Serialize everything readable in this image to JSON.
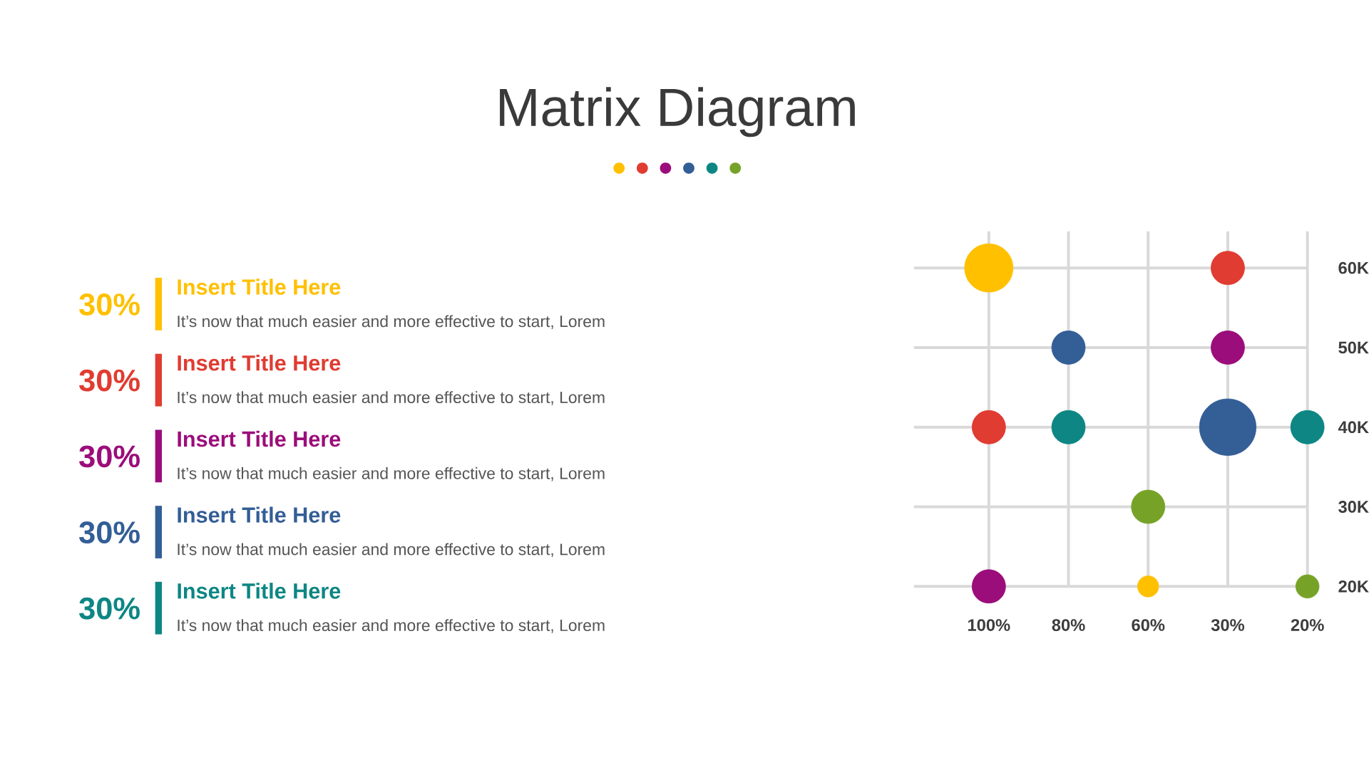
{
  "chart_data": [
    {
      "type": "other",
      "categories": [
        "Insert Title Here",
        "Insert Title Here",
        "Insert Title Here",
        "Insert Title Here",
        "Insert Title Here"
      ],
      "value_labels": [
        "30%",
        "30%",
        "30%",
        "30%",
        "30%"
      ],
      "annotations": [
        "It’s now that much easier and more effective to start, Lorem",
        "It’s now that much easier and more effective to start, Lorem",
        "It’s now that much easier and more effective to start, Lorem",
        "It’s now that much easier and more effective to start, Lorem",
        "It’s now that much easier and more effective to start, Lorem"
      ],
      "colors": [
        "#ffc000",
        "#e03c31",
        "#9b0d7a",
        "#335e96",
        "#0d8684"
      ]
    },
    {
      "type": "bubble",
      "title": "Matrix Diagram",
      "categories": [
        "100%",
        "80%",
        "60%",
        "30%",
        "20%"
      ],
      "series": [
        {
          "color": "#ffc000",
          "values": [
            60000,
            null,
            20000,
            null,
            null
          ],
          "sizes": [
            0.73,
            null,
            0.14,
            null,
            null
          ]
        },
        {
          "color": "#e03c31",
          "values": [
            40000,
            null,
            null,
            60000,
            null
          ],
          "sizes": [
            0.35,
            null,
            null,
            0.35,
            null
          ]
        },
        {
          "color": "#9b0d7a",
          "values": [
            20000,
            null,
            null,
            50000,
            null
          ],
          "sizes": [
            0.35,
            null,
            null,
            0.35,
            null
          ]
        },
        {
          "color": "#335e96",
          "values": [
            null,
            50000,
            null,
            40000,
            null
          ],
          "sizes": [
            null,
            0.35,
            null,
            1,
            null
          ]
        },
        {
          "color": "#0d8684",
          "values": [
            null,
            40000,
            null,
            null,
            40000
          ],
          "sizes": [
            null,
            0.35,
            null,
            null,
            0.35
          ]
        },
        {
          "color": "#77a228",
          "values": [
            null,
            null,
            30000,
            null,
            20000
          ],
          "sizes": [
            null,
            null,
            0.35,
            null,
            0.17
          ]
        }
      ],
      "ylim": [
        20000,
        64600
      ],
      "yticks": [
        {
          "value": 20000,
          "label": "20K"
        },
        {
          "value": 30000,
          "label": "30K"
        },
        {
          "value": 40000,
          "label": "40K"
        },
        {
          "value": 50000,
          "label": "50K"
        },
        {
          "value": 60000,
          "label": "60K"
        }
      ],
      "grid": true
    }
  ]
}
